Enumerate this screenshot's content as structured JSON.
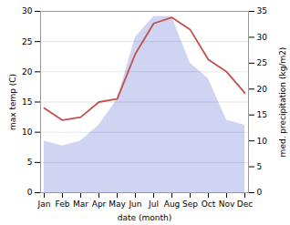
{
  "chart_data": {
    "type": "line",
    "categories": [
      "Jan",
      "Feb",
      "Mar",
      "Apr",
      "May",
      "Jun",
      "Jul",
      "Aug",
      "Sep",
      "Oct",
      "Nov",
      "Dec"
    ],
    "xlabel": "date (month)",
    "ylabel": "max temp (C)",
    "y2label": "med. precipitation (kg/m2)",
    "ylim": [
      0,
      30
    ],
    "yticks": [
      0,
      5,
      10,
      15,
      20,
      25,
      30
    ],
    "y2lim": [
      0,
      35
    ],
    "y2ticks": [
      0,
      5,
      10,
      15,
      20,
      25,
      30,
      35
    ],
    "grid": true,
    "series": [
      {
        "type": "area",
        "axis": "y2",
        "color": "#c5cdf0",
        "values": [
          10,
          9,
          10,
          13,
          18,
          30,
          34,
          34,
          25,
          22,
          14,
          13
        ]
      },
      {
        "type": "line",
        "color": "#c0524a",
        "values": [
          14.0,
          12.0,
          12.5,
          15.0,
          15.5,
          23.0,
          28.0,
          29.0,
          27.0,
          22.0,
          20.0,
          16.5
        ]
      }
    ]
  }
}
